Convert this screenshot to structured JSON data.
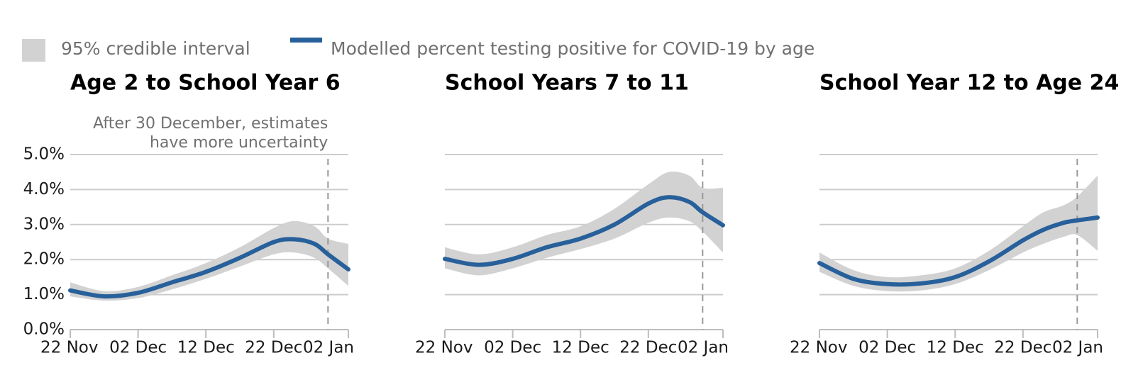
{
  "legend": {
    "interval_label": "95% credible interval",
    "line_label": "Modelled percent testing positive for COVID-19 by age"
  },
  "colors": {
    "line": "#27609a",
    "interval": "#d2d2d2",
    "grid": "#cccccc",
    "axis": "#bdbdbd",
    "marker": "#999999"
  },
  "chart_data": [
    {
      "type": "line",
      "title": "Age 2 to School Year 6",
      "annotation": [
        "After 30 December, estimates",
        "have more uncertainty"
      ],
      "marker_date": "30 Dec",
      "x_ticks": [
        "22 Nov",
        "02 Dec",
        "12 Dec",
        "22 Dec",
        "02 Jan"
      ],
      "y_ticks": [
        "0.0%",
        "1.0%",
        "2.0%",
        "3.0%",
        "4.0%",
        "5.0%"
      ],
      "ylim": [
        0,
        5
      ],
      "xlabel": "",
      "ylabel": "",
      "x": [
        "22 Nov",
        "27 Nov",
        "02 Dec",
        "07 Dec",
        "12 Dec",
        "17 Dec",
        "22 Dec",
        "25 Dec",
        "28 Dec",
        "30 Dec",
        "02 Jan"
      ],
      "series": [
        {
          "values": [
            1.12,
            0.95,
            1.05,
            1.35,
            1.65,
            2.05,
            2.5,
            2.58,
            2.45,
            2.15,
            1.72
          ]
        },
        {
          "name": "95% credible interval",
          "lower": [
            0.95,
            0.83,
            0.9,
            1.15,
            1.45,
            1.8,
            2.15,
            2.2,
            2.05,
            1.75,
            1.25
          ],
          "upper": [
            1.35,
            1.1,
            1.22,
            1.55,
            1.9,
            2.35,
            2.9,
            3.1,
            2.95,
            2.6,
            2.45
          ]
        }
      ]
    },
    {
      "type": "line",
      "title": "School Years 7 to 11",
      "marker_date": "30 Dec",
      "x_ticks": [
        "22 Nov",
        "02 Dec",
        "12 Dec",
        "22 Dec",
        "02 Jan"
      ],
      "ylim": [
        0,
        5
      ],
      "xlabel": "",
      "ylabel": "",
      "x": [
        "22 Nov",
        "27 Nov",
        "02 Dec",
        "07 Dec",
        "12 Dec",
        "17 Dec",
        "22 Dec",
        "25 Dec",
        "28 Dec",
        "30 Dec",
        "02 Jan"
      ],
      "series": [
        {
          "values": [
            2.02,
            1.85,
            2.02,
            2.35,
            2.6,
            3.0,
            3.6,
            3.78,
            3.65,
            3.35,
            2.98
          ]
        },
        {
          "name": "95% credible interval",
          "lower": [
            1.75,
            1.55,
            1.75,
            2.05,
            2.3,
            2.6,
            3.05,
            3.2,
            3.1,
            2.8,
            2.2
          ],
          "upper": [
            2.35,
            2.15,
            2.35,
            2.7,
            2.95,
            3.45,
            4.15,
            4.5,
            4.4,
            4.05,
            4.05
          ]
        }
      ]
    },
    {
      "type": "line",
      "title": "School Year 12 to Age 24",
      "marker_date": "30 Dec",
      "x_ticks": [
        "22 Nov",
        "02 Dec",
        "12 Dec",
        "22 Dec",
        "02 Jan"
      ],
      "ylim": [
        0,
        5
      ],
      "xlabel": "",
      "ylabel": "",
      "x": [
        "22 Nov",
        "27 Nov",
        "02 Dec",
        "07 Dec",
        "12 Dec",
        "17 Dec",
        "22 Dec",
        "25 Dec",
        "28 Dec",
        "30 Dec",
        "02 Jan"
      ],
      "series": [
        {
          "values": [
            1.9,
            1.45,
            1.3,
            1.32,
            1.5,
            1.95,
            2.55,
            2.85,
            3.05,
            3.12,
            3.2
          ]
        },
        {
          "name": "95% credible interval",
          "lower": [
            1.65,
            1.25,
            1.1,
            1.12,
            1.3,
            1.7,
            2.2,
            2.45,
            2.65,
            2.7,
            2.25
          ],
          "upper": [
            2.2,
            1.7,
            1.5,
            1.55,
            1.75,
            2.25,
            2.95,
            3.35,
            3.55,
            3.8,
            4.4
          ]
        }
      ]
    }
  ]
}
